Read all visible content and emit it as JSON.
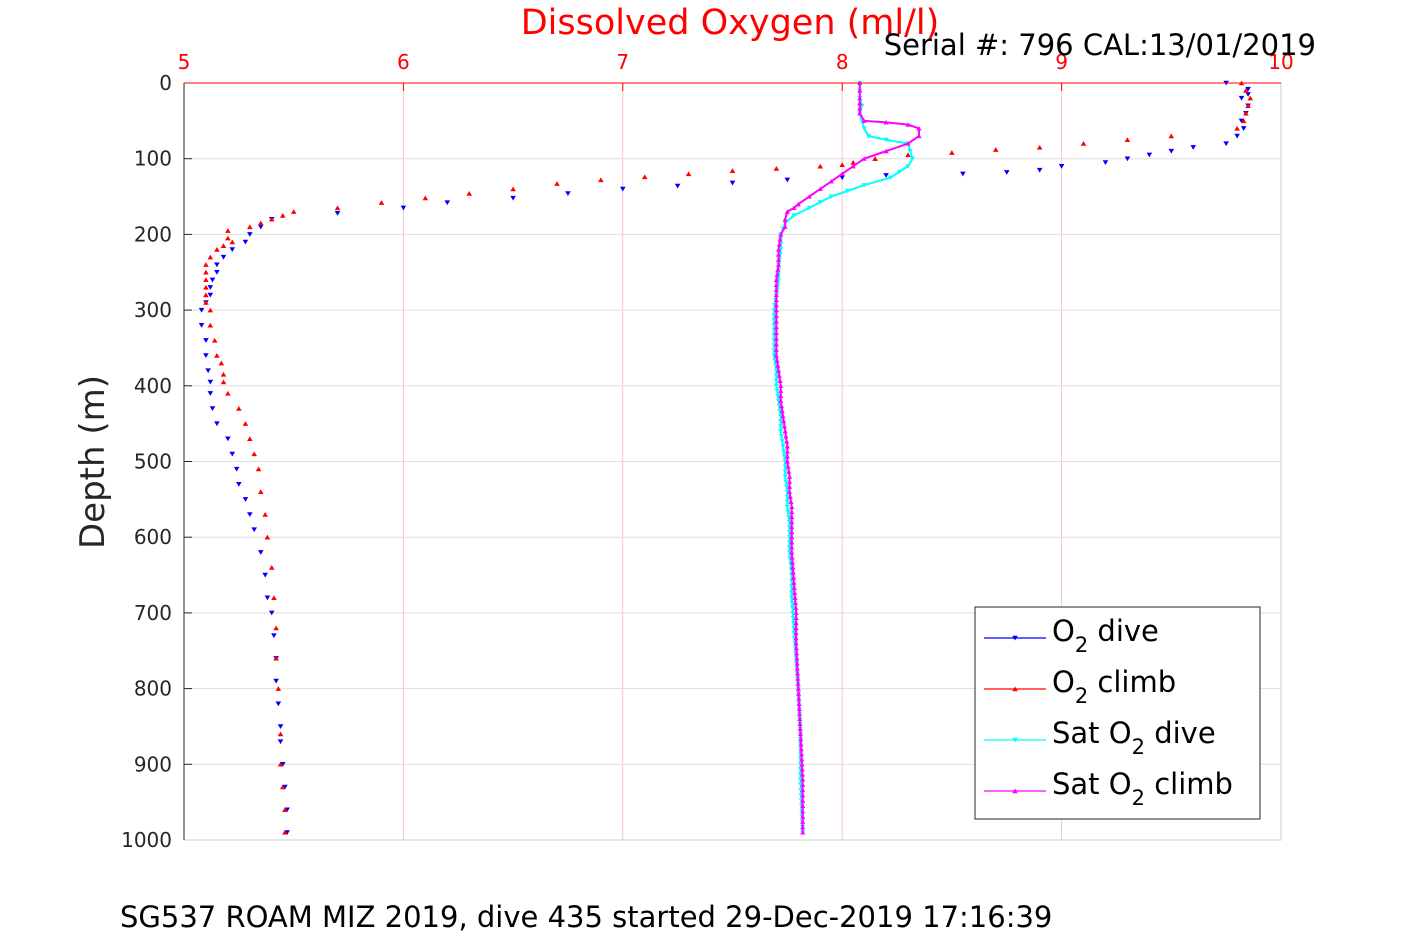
{
  "chart_data": {
    "type": "scatter",
    "title": "Dissolved Oxygen (ml/l)",
    "annotation": "Serial #: 796  CAL:13/01/2019",
    "footer": "SG537 ROAM MIZ 2019, dive 435 started 29-Dec-2019 17:16:39",
    "xlabel": "Dissolved Oxygen (ml/l)",
    "ylabel": "Depth (m)",
    "xlim": [
      5,
      10
    ],
    "ylim": [
      0,
      1000
    ],
    "y_reversed": true,
    "x_axis_position": "top",
    "grid": true,
    "xticks": [
      "5",
      "6",
      "7",
      "8",
      "9",
      "10"
    ],
    "yticks": [
      "0",
      "100",
      "200",
      "300",
      "400",
      "500",
      "600",
      "700",
      "800",
      "900",
      "1000"
    ],
    "legend": {
      "placement": "bottom-right",
      "entries": [
        {
          "prefix": "O",
          "sub": "2",
          "suffix": " dive"
        },
        {
          "prefix": "O",
          "sub": "2",
          "suffix": " climb"
        },
        {
          "prefix": "Sat O",
          "sub": "2",
          "suffix": " dive"
        },
        {
          "prefix": "Sat O",
          "sub": "2",
          "suffix": " climb"
        }
      ]
    },
    "series": [
      {
        "color": "#0000ff",
        "marker": "triangle-down",
        "line": false,
        "x": [
          9.75,
          9.85,
          9.85,
          9.82,
          9.85,
          9.84,
          9.82,
          9.83,
          9.8,
          9.75,
          9.6,
          9.5,
          9.4,
          9.3,
          9.2,
          9.0,
          8.9,
          8.75,
          8.55,
          8.2,
          8.0,
          7.75,
          7.5,
          7.25,
          7.0,
          6.75,
          6.5,
          6.2,
          6.0,
          5.7,
          5.4,
          5.35,
          5.3,
          5.28,
          5.22,
          5.18,
          5.15,
          5.15,
          5.13,
          5.12,
          5.12,
          5.1,
          5.08,
          5.08,
          5.1,
          5.1,
          5.11,
          5.12,
          5.12,
          5.13,
          5.15,
          5.2,
          5.22,
          5.24,
          5.25,
          5.28,
          5.3,
          5.32,
          5.35,
          5.37,
          5.38,
          5.4,
          5.41,
          5.42,
          5.42,
          5.43,
          5.44,
          5.44,
          5.45,
          5.46,
          5.47,
          5.47
        ],
        "y": [
          0,
          8,
          15,
          20,
          30,
          40,
          50,
          60,
          70,
          80,
          85,
          90,
          95,
          100,
          105,
          110,
          115,
          118,
          120,
          122,
          125,
          128,
          132,
          136,
          140,
          146,
          152,
          158,
          165,
          172,
          180,
          190,
          200,
          210,
          220,
          230,
          240,
          250,
          260,
          270,
          280,
          290,
          300,
          320,
          340,
          360,
          380,
          395,
          410,
          430,
          450,
          470,
          490,
          510,
          530,
          550,
          570,
          590,
          620,
          650,
          680,
          700,
          730,
          760,
          790,
          820,
          850,
          870,
          900,
          930,
          960,
          990
        ]
      },
      {
        "color": "#ff0000",
        "marker": "triangle-up",
        "line": false,
        "x": [
          9.82,
          9.84,
          9.86,
          9.85,
          9.84,
          9.83,
          9.8,
          9.5,
          9.3,
          9.1,
          8.9,
          8.7,
          8.5,
          8.3,
          8.15,
          8.05,
          8.0,
          7.9,
          7.7,
          7.5,
          7.3,
          7.1,
          6.9,
          6.7,
          6.5,
          6.3,
          6.1,
          5.9,
          5.7,
          5.5,
          5.45,
          5.4,
          5.35,
          5.3,
          5.2,
          5.2,
          5.22,
          5.18,
          5.15,
          5.12,
          5.1,
          5.1,
          5.1,
          5.1,
          5.1,
          5.1,
          5.12,
          5.12,
          5.14,
          5.15,
          5.17,
          5.18,
          5.18,
          5.2,
          5.25,
          5.28,
          5.3,
          5.32,
          5.34,
          5.35,
          5.37,
          5.38,
          5.4,
          5.41,
          5.42,
          5.42,
          5.43,
          5.44,
          5.44,
          5.45,
          5.46,
          5.46
        ],
        "y": [
          0,
          10,
          20,
          30,
          40,
          50,
          60,
          70,
          75,
          80,
          85,
          88,
          92,
          95,
          100,
          105,
          108,
          110,
          113,
          116,
          120,
          124,
          128,
          133,
          140,
          146,
          152,
          158,
          165,
          170,
          175,
          180,
          185,
          190,
          195,
          205,
          210,
          215,
          220,
          230,
          240,
          250,
          260,
          270,
          280,
          290,
          300,
          320,
          340,
          360,
          370,
          385,
          395,
          410,
          430,
          450,
          470,
          490,
          510,
          540,
          570,
          600,
          640,
          680,
          720,
          760,
          800,
          860,
          900,
          930,
          960,
          990
        ]
      },
      {
        "color": "#00ffff",
        "marker": "triangle-down",
        "line": true,
        "x": [
          8.08,
          8.08,
          8.08,
          8.09,
          8.08,
          8.09,
          8.1,
          8.12,
          8.2,
          8.3,
          8.31,
          8.32,
          8.3,
          8.22,
          8.1,
          7.95,
          7.85,
          7.78,
          7.74,
          7.72,
          7.72,
          7.71,
          7.71,
          7.7,
          7.69,
          7.69,
          7.69,
          7.69,
          7.7,
          7.7,
          7.71,
          7.72,
          7.72,
          7.73,
          7.74,
          7.74,
          7.75,
          7.75,
          7.76,
          7.76,
          7.76,
          7.77,
          7.77,
          7.78,
          7.79,
          7.8,
          7.81,
          7.81,
          7.82
        ],
        "y": [
          0,
          10,
          20,
          30,
          40,
          50,
          60,
          70,
          75,
          80,
          90,
          100,
          110,
          125,
          135,
          150,
          165,
          175,
          185,
          200,
          220,
          240,
          260,
          280,
          300,
          320,
          340,
          360,
          380,
          400,
          420,
          440,
          460,
          480,
          500,
          520,
          540,
          560,
          580,
          600,
          620,
          650,
          680,
          720,
          760,
          800,
          860,
          920,
          990
        ]
      },
      {
        "color": "#ff00ff",
        "marker": "triangle-up",
        "line": true,
        "x": [
          8.08,
          8.08,
          8.08,
          8.08,
          8.1,
          8.2,
          8.3,
          8.35,
          8.35,
          8.3,
          8.2,
          8.1,
          8.05,
          8.0,
          7.95,
          7.9,
          7.85,
          7.8,
          7.78,
          7.75,
          7.74,
          7.74,
          7.72,
          7.71,
          7.71,
          7.7,
          7.7,
          7.7,
          7.7,
          7.7,
          7.71,
          7.72,
          7.72,
          7.73,
          7.74,
          7.75,
          7.75,
          7.76,
          7.76,
          7.77,
          7.77,
          7.77,
          7.78,
          7.79,
          7.79,
          7.8,
          7.81,
          7.82,
          7.82
        ],
        "y": [
          0,
          10,
          20,
          40,
          50,
          52,
          55,
          60,
          70,
          80,
          90,
          100,
          110,
          120,
          130,
          140,
          150,
          160,
          165,
          170,
          180,
          190,
          200,
          220,
          240,
          260,
          280,
          300,
          330,
          360,
          380,
          400,
          420,
          440,
          460,
          480,
          500,
          520,
          540,
          560,
          580,
          620,
          660,
          700,
          740,
          800,
          860,
          920,
          990
        ]
      }
    ]
  }
}
